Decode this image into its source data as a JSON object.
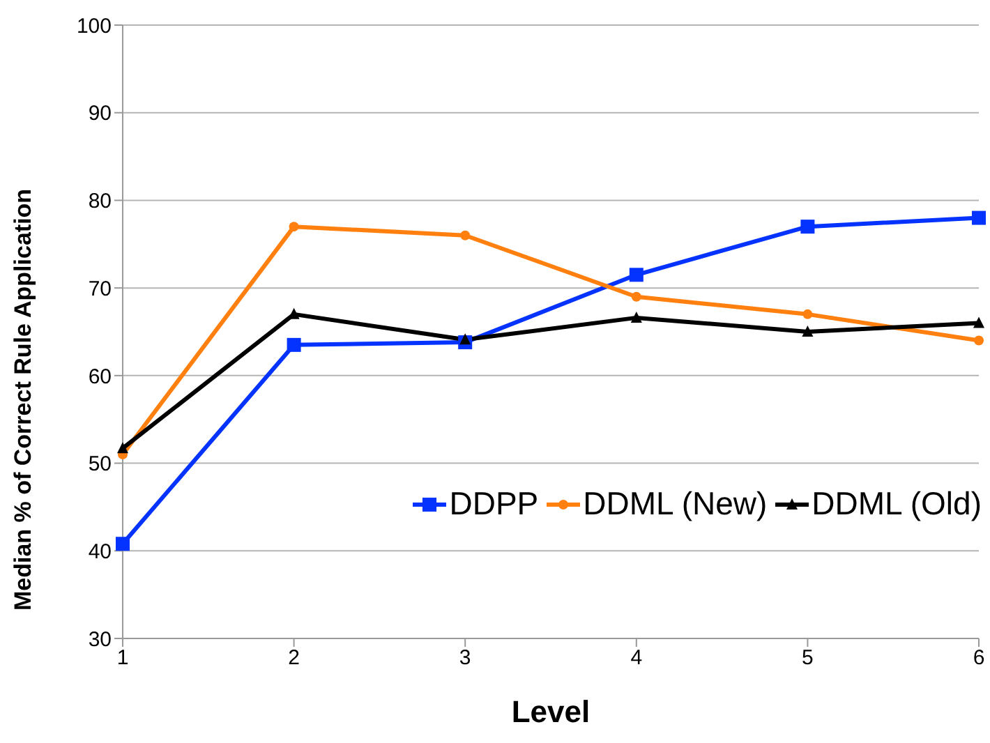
{
  "chart_data": {
    "type": "line",
    "xlabel": "Level",
    "ylabel": "Median % of Correct Rule Application",
    "categories": [
      "1",
      "2",
      "3",
      "4",
      "5",
      "6"
    ],
    "series": [
      {
        "name": "DDPP",
        "color": "#0433ff",
        "marker": "square",
        "values": [
          40.8,
          63.5,
          63.8,
          71.5,
          77,
          78
        ]
      },
      {
        "name": "DDML (New)",
        "color": "#ff7f0f",
        "marker": "circle",
        "values": [
          51,
          77,
          76,
          69,
          67,
          64
        ]
      },
      {
        "name": "DDML (Old)",
        "color": "#000000",
        "marker": "triangle",
        "values": [
          51.7,
          67,
          64.1,
          66.6,
          65,
          66
        ]
      }
    ],
    "ylim": [
      30,
      100
    ],
    "yticks": [
      30,
      40,
      50,
      60,
      70,
      80,
      90,
      100
    ],
    "grid": "y",
    "legend": "right"
  }
}
